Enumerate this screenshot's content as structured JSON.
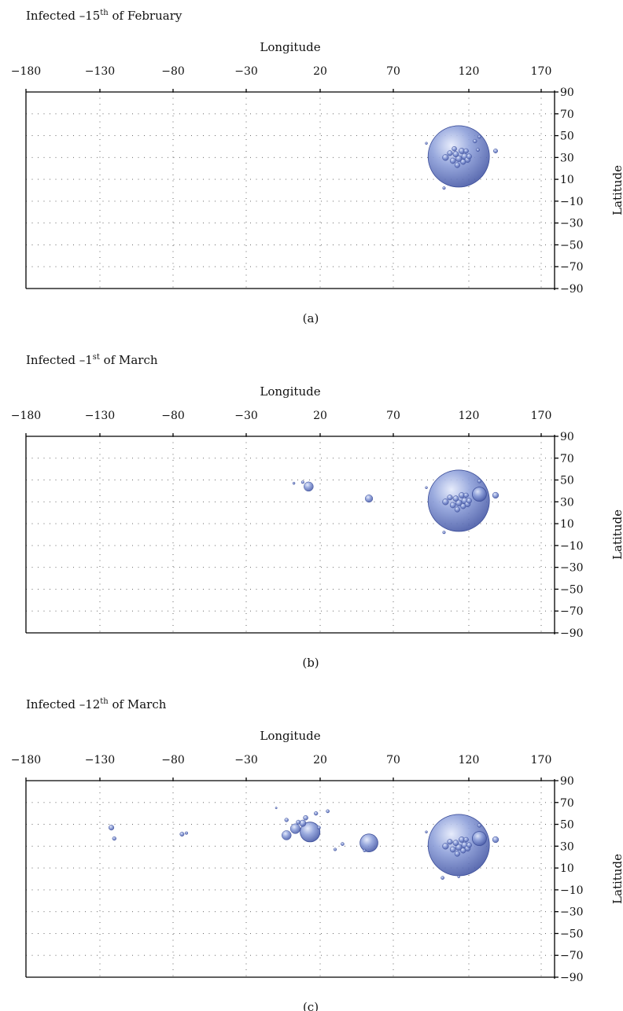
{
  "colors": {
    "bubble_fill": "#7d90cf",
    "bubble_stroke": "#3d4f9a",
    "bubble_highlight": "#dfe6fb",
    "axis": "#000000",
    "grid": "#555555"
  },
  "chart_data": [
    {
      "type": "scatter",
      "title_prefix": "Infected –15",
      "title_sup": "th",
      "title_suffix": " of February",
      "xlabel": "Longitude",
      "ylabel": "Latitude",
      "panel_label": "(a)",
      "xlim": [
        -180,
        180
      ],
      "ylim": [
        -90,
        90
      ],
      "x_ticks": [
        "−180",
        "−130",
        "−80",
        "−30",
        "20",
        "70",
        "120",
        "170"
      ],
      "y_ticks": [
        "90",
        "70",
        "50",
        "30",
        "10",
        "−10",
        "−30",
        "−50",
        "−70",
        "−90"
      ],
      "grid": "dotted",
      "points": [
        {
          "lon": 114,
          "lat": 31,
          "r": 13
        },
        {
          "lon": 105,
          "lat": 30,
          "r": 1.3
        },
        {
          "lon": 108,
          "lat": 34,
          "r": 1.1
        },
        {
          "lon": 110,
          "lat": 27,
          "r": 1.2
        },
        {
          "lon": 112,
          "lat": 33,
          "r": 1.2
        },
        {
          "lon": 114,
          "lat": 29,
          "r": 1.3
        },
        {
          "lon": 116,
          "lat": 36,
          "r": 1.2
        },
        {
          "lon": 117,
          "lat": 26,
          "r": 1.1
        },
        {
          "lon": 118,
          "lat": 31,
          "r": 1.3
        },
        {
          "lon": 120,
          "lat": 28,
          "r": 1.2
        },
        {
          "lon": 121,
          "lat": 31,
          "r": 1.1
        },
        {
          "lon": 113,
          "lat": 23,
          "r": 1.1
        },
        {
          "lon": 119,
          "lat": 36,
          "r": 1.0
        },
        {
          "lon": 111,
          "lat": 38,
          "r": 1.0
        },
        {
          "lon": 125,
          "lat": 45,
          "r": 0.8
        },
        {
          "lon": 127,
          "lat": 37,
          "r": 0.7
        },
        {
          "lon": 139,
          "lat": 36,
          "r": 0.9
        },
        {
          "lon": 128,
          "lat": 49,
          "r": 0.7
        },
        {
          "lon": 92,
          "lat": 43,
          "r": 0.5
        },
        {
          "lon": 104,
          "lat": 2,
          "r": 0.6
        }
      ]
    },
    {
      "type": "scatter",
      "title_prefix": "Infected –1",
      "title_sup": "st",
      "title_suffix": " of March",
      "xlabel": "Longitude",
      "ylabel": "Latitude",
      "panel_label": "(b)",
      "xlim": [
        -180,
        180
      ],
      "ylim": [
        -90,
        90
      ],
      "x_ticks": [
        "−180",
        "−130",
        "−80",
        "−30",
        "20",
        "70",
        "120",
        "170"
      ],
      "y_ticks": [
        "90",
        "70",
        "50",
        "30",
        "10",
        "−10",
        "−30",
        "−50",
        "−70",
        "−90"
      ],
      "grid": "dotted",
      "points": [
        {
          "lon": 114,
          "lat": 31,
          "r": 13
        },
        {
          "lon": 105,
          "lat": 30,
          "r": 1.3
        },
        {
          "lon": 108,
          "lat": 34,
          "r": 1.1
        },
        {
          "lon": 110,
          "lat": 27,
          "r": 1.2
        },
        {
          "lon": 112,
          "lat": 33,
          "r": 1.2
        },
        {
          "lon": 114,
          "lat": 29,
          "r": 1.3
        },
        {
          "lon": 116,
          "lat": 36,
          "r": 1.2
        },
        {
          "lon": 117,
          "lat": 26,
          "r": 1.1
        },
        {
          "lon": 118,
          "lat": 31,
          "r": 1.3
        },
        {
          "lon": 120,
          "lat": 28,
          "r": 1.2
        },
        {
          "lon": 121,
          "lat": 31,
          "r": 1.1
        },
        {
          "lon": 113,
          "lat": 23,
          "r": 1.1
        },
        {
          "lon": 119,
          "lat": 36,
          "r": 1.0
        },
        {
          "lon": 128,
          "lat": 37,
          "r": 3.0
        },
        {
          "lon": 139,
          "lat": 36,
          "r": 1.3
        },
        {
          "lon": 128,
          "lat": 49,
          "r": 0.8
        },
        {
          "lon": 12,
          "lat": 44,
          "r": 2.0
        },
        {
          "lon": 53,
          "lat": 33,
          "r": 1.6
        },
        {
          "lon": 8,
          "lat": 48,
          "r": 0.6
        },
        {
          "lon": 2,
          "lat": 47,
          "r": 0.5
        },
        {
          "lon": 104,
          "lat": 2,
          "r": 0.6
        },
        {
          "lon": 92,
          "lat": 43,
          "r": 0.5
        }
      ]
    },
    {
      "type": "scatter",
      "title_prefix": "Infected –12",
      "title_sup": "th",
      "title_suffix": " of March",
      "xlabel": "Longitude",
      "ylabel": "Latitude",
      "panel_label": "(c)",
      "xlim": [
        -180,
        180
      ],
      "ylim": [
        -90,
        90
      ],
      "x_ticks": [
        "−180",
        "−130",
        "−80",
        "−30",
        "20",
        "70",
        "120",
        "170"
      ],
      "y_ticks": [
        "90",
        "70",
        "50",
        "30",
        "10",
        "−10",
        "−30",
        "−50",
        "−70",
        "−90"
      ],
      "grid": "dotted",
      "points": [
        {
          "lon": 114,
          "lat": 31,
          "r": 13
        },
        {
          "lon": 105,
          "lat": 30,
          "r": 1.3
        },
        {
          "lon": 108,
          "lat": 34,
          "r": 1.1
        },
        {
          "lon": 110,
          "lat": 27,
          "r": 1.2
        },
        {
          "lon": 112,
          "lat": 33,
          "r": 1.2
        },
        {
          "lon": 114,
          "lat": 29,
          "r": 1.3
        },
        {
          "lon": 116,
          "lat": 36,
          "r": 1.2
        },
        {
          "lon": 117,
          "lat": 26,
          "r": 1.1
        },
        {
          "lon": 118,
          "lat": 31,
          "r": 1.3
        },
        {
          "lon": 120,
          "lat": 28,
          "r": 1.2
        },
        {
          "lon": 121,
          "lat": 31,
          "r": 1.1
        },
        {
          "lon": 113,
          "lat": 23,
          "r": 1.1
        },
        {
          "lon": 119,
          "lat": 36,
          "r": 1.0
        },
        {
          "lon": 128,
          "lat": 37,
          "r": 3.0
        },
        {
          "lon": 139,
          "lat": 36,
          "r": 1.3
        },
        {
          "lon": 128,
          "lat": 49,
          "r": 0.8
        },
        {
          "lon": 13,
          "lat": 43,
          "r": 4.2
        },
        {
          "lon": 53,
          "lat": 33,
          "r": 3.8
        },
        {
          "lon": 3,
          "lat": 46,
          "r": 2.1
        },
        {
          "lon": -3,
          "lat": 40,
          "r": 2.0
        },
        {
          "lon": 8,
          "lat": 51,
          "r": 1.4
        },
        {
          "lon": 10,
          "lat": 56,
          "r": 1.0
        },
        {
          "lon": 5,
          "lat": 52,
          "r": 0.9
        },
        {
          "lon": 17,
          "lat": 60,
          "r": 0.8
        },
        {
          "lon": 25,
          "lat": 62,
          "r": 0.7
        },
        {
          "lon": -3,
          "lat": 54,
          "r": 0.8
        },
        {
          "lon": 19,
          "lat": 47,
          "r": 0.7
        },
        {
          "lon": -122,
          "lat": 47,
          "r": 1.1
        },
        {
          "lon": -120,
          "lat": 37,
          "r": 0.8
        },
        {
          "lon": -74,
          "lat": 41,
          "r": 0.9
        },
        {
          "lon": -71,
          "lat": 42,
          "r": 0.6
        },
        {
          "lon": 35,
          "lat": 32,
          "r": 0.7
        },
        {
          "lon": 30,
          "lat": 27,
          "r": 0.6
        },
        {
          "lon": 50,
          "lat": 26,
          "r": 0.6
        },
        {
          "lon": 103,
          "lat": 1,
          "r": 0.7
        },
        {
          "lon": 114,
          "lat": 2,
          "r": 0.5
        },
        {
          "lon": 92,
          "lat": 43,
          "r": 0.5
        },
        {
          "lon": -10,
          "lat": 65,
          "r": 0.4
        }
      ]
    }
  ]
}
